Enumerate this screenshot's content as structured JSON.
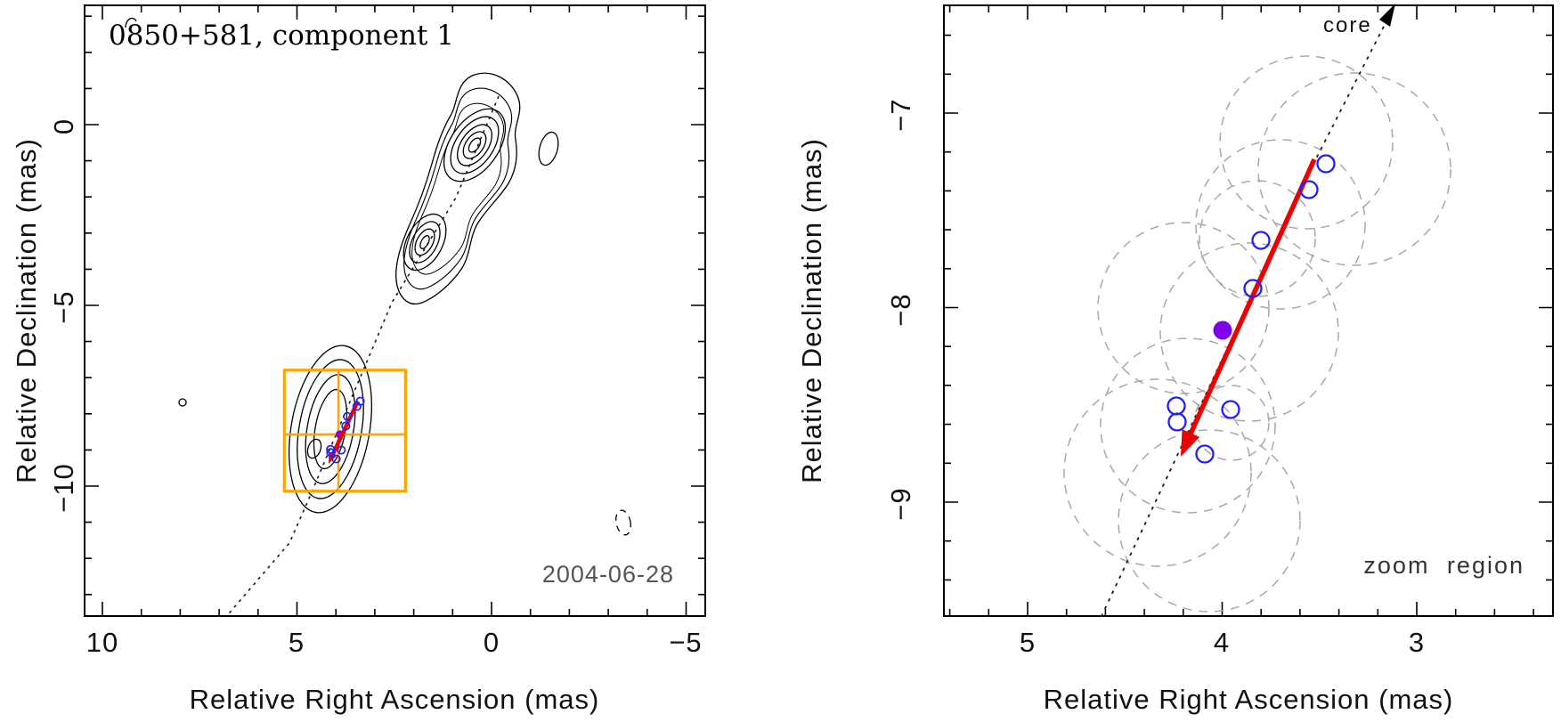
{
  "figure": {
    "left_panel": {
      "title": "0850+581, component 1",
      "date": "2004-06-28",
      "xlabel": "Relative Right Ascension (mas)",
      "ylabel": "Relative Declination (mas)",
      "xticks": [
        "10",
        "5",
        "0",
        "−5"
      ],
      "yticks": [
        "0",
        "−5",
        "−10"
      ]
    },
    "right_panel": {
      "xlabel": "Relative Right Ascension (mas)",
      "ylabel": "Relative Declination (mas)",
      "xticks": [
        "5",
        "4",
        "3"
      ],
      "yticks": [
        "−7",
        "−8",
        "−9"
      ],
      "core_label": "core",
      "zoom_label": "zoom region"
    },
    "colors": {
      "zoom_box_orange": "#FFA500",
      "motion_arrow_red": "#EE0000",
      "component_circle_blue": "#2020FF",
      "mean_position_purple": "#8000E8",
      "size_circle_gray": "#A8A8A8",
      "date_gray": "#555555",
      "contour_black": "#000000"
    }
  },
  "chart_data": [
    {
      "panel": "left",
      "type": "contour",
      "title": "0850+581, component 1",
      "xlabel": "Relative Right Ascension (mas)",
      "ylabel": "Relative Declination (mas)",
      "xticks": [
        10,
        5,
        0,
        -5
      ],
      "yticks": [
        0,
        -5,
        -10
      ],
      "xlim": [
        10.5,
        -5.5
      ],
      "ylim": [
        -13.6,
        3.3
      ],
      "x_axis_reversed": true,
      "epoch_label": "2004-06-28",
      "contour_features_mas": [
        {
          "name": "core peak",
          "x": 0.4,
          "y": -0.6
        },
        {
          "name": "inner jet knot",
          "x": 1.7,
          "y": -3.2
        },
        {
          "name": "component 1",
          "x": 4.1,
          "y": -8.4
        },
        {
          "name": "small isolated contour",
          "x": -1.5,
          "y": -0.7
        },
        {
          "name": "small negative (dashed) contour",
          "x": -3.4,
          "y": -11.0
        },
        {
          "name": "small isolated contour",
          "x": 7.9,
          "y": -7.7
        }
      ],
      "zoom_box_mas": {
        "x": [
          5.3,
          2.2
        ],
        "y": [
          -6.8,
          -10.1
        ]
      },
      "jet_axis_dotted_line": true
    },
    {
      "panel": "right",
      "type": "scatter",
      "subtitle": "zoom region",
      "xlabel": "Relative Right Ascension (mas)",
      "ylabel": "Relative Declination (mas)",
      "xticks": [
        5,
        4,
        3
      ],
      "yticks": [
        -7,
        -8,
        -9
      ],
      "xlim": [
        5.43,
        2.3
      ],
      "ylim": [
        -9.58,
        -6.45
      ],
      "x_axis_reversed": true,
      "series": [
        {
          "name": "component positions (blue open circles)",
          "points": [
            {
              "x": 3.47,
              "y": -7.25
            },
            {
              "x": 3.55,
              "y": -7.38
            },
            {
              "x": 3.8,
              "y": -7.64
            },
            {
              "x": 3.84,
              "y": -7.89
            },
            {
              "x": 4.24,
              "y": -8.5
            },
            {
              "x": 4.23,
              "y": -8.58
            },
            {
              "x": 3.96,
              "y": -8.51
            },
            {
              "x": 4.09,
              "y": -8.74
            }
          ]
        },
        {
          "name": "mean position (purple filled circle)",
          "points": [
            {
              "x": 4.0,
              "y": -8.11
            }
          ]
        },
        {
          "name": "component size circles (gray dashed)",
          "circles": [
            {
              "x": 3.57,
              "y": -7.14,
              "r": 0.44
            },
            {
              "x": 3.32,
              "y": -7.28,
              "r": 0.49
            },
            {
              "x": 3.7,
              "y": -7.56,
              "r": 0.43
            },
            {
              "x": 3.82,
              "y": -7.63,
              "r": 0.3
            },
            {
              "x": 3.86,
              "y": -8.11,
              "r": 0.46
            },
            {
              "x": 4.2,
              "y": -7.99,
              "r": 0.44
            },
            {
              "x": 4.18,
              "y": -8.6,
              "r": 0.45
            },
            {
              "x": 3.95,
              "y": -8.58,
              "r": 0.19
            },
            {
              "x": 4.33,
              "y": -8.84,
              "r": 0.48
            },
            {
              "x": 4.07,
              "y": -9.09,
              "r": 0.47
            }
          ]
        },
        {
          "name": "motion vector (red arrow)",
          "from": {
            "x": 3.53,
            "y": -7.22
          },
          "to": {
            "x": 4.21,
            "y": -8.75
          }
        },
        {
          "name": "direction to core (black dotted arrow)",
          "from": {
            "x": 4.62,
            "y": -9.58
          },
          "to": {
            "x": 3.13,
            "y": -6.46
          },
          "label": "core"
        }
      ]
    }
  ]
}
